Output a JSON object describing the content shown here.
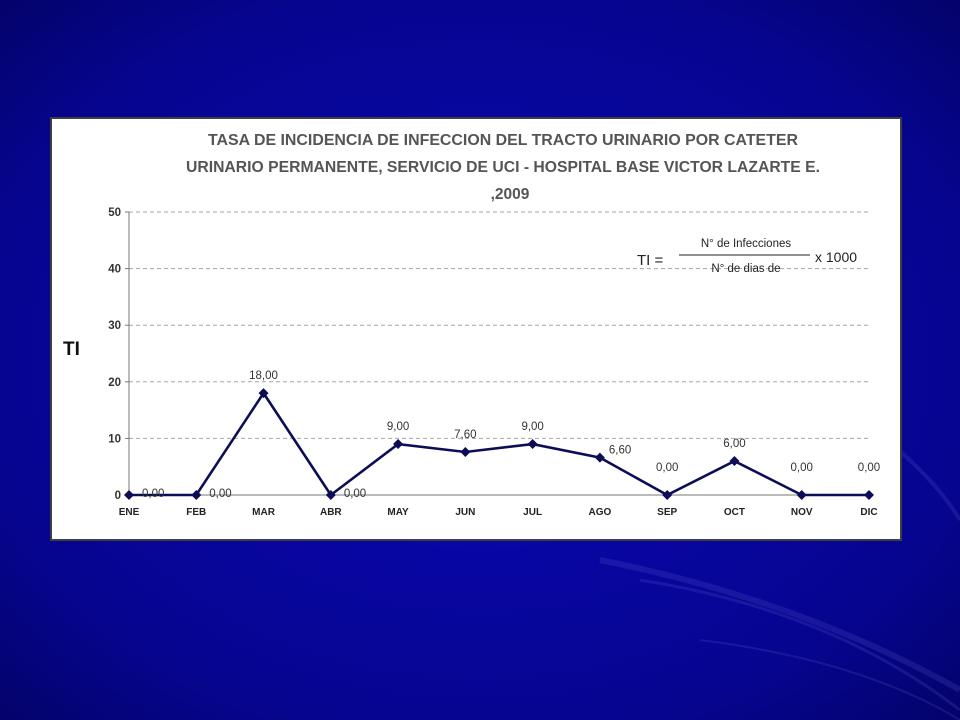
{
  "colors": {
    "background": "#06058f",
    "series": "#0d0d55",
    "grid": "#a6a6a6",
    "card": "#ffffff"
  },
  "chart_data": {
    "type": "line",
    "title": [
      "TASA DE INCIDENCIA  DE INFECCION DEL TRACTO URINARIO POR CATETER",
      "URINARIO PERMANENTE, SERVICIO DE UCI -  HOSPITAL BASE VICTOR LAZARTE E.",
      ",2009"
    ],
    "xlabel": "",
    "ylabel": "TI",
    "ylim": [
      0,
      50
    ],
    "yticks": [
      0,
      10,
      20,
      30,
      40,
      50
    ],
    "grid": "horizontal-dashed",
    "categories": [
      "ENE",
      "FEB",
      "MAR",
      "ABR",
      "MAY",
      "JUN",
      "JUL",
      "AGO",
      "SEP",
      "OCT",
      "NOV",
      "DIC"
    ],
    "series": [
      {
        "name": "",
        "values": [
          0,
          0,
          18,
          0,
          9,
          7.6,
          9,
          6.6,
          0,
          6,
          0,
          0
        ],
        "labels": [
          "0,00",
          "0,00",
          "18,00",
          "0,00",
          "9,00",
          "7,60",
          "9,00",
          "6,60",
          "0,00",
          "6,00",
          "0,00",
          "0,00"
        ]
      }
    ],
    "annotation": {
      "lhs": "TI =",
      "numerator": "N° de Infecciones",
      "denominator": "N° de dias de",
      "multiplier": "x 1000",
      "placement": "top-right"
    }
  }
}
